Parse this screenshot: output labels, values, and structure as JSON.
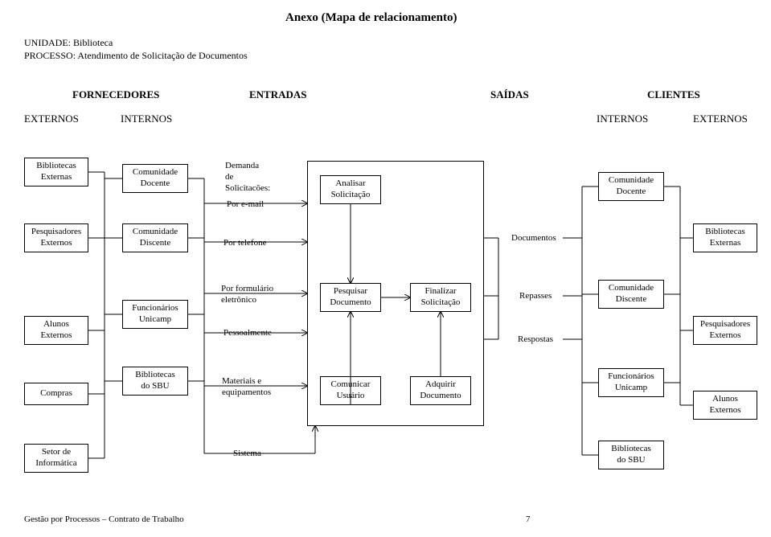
{
  "title": "Anexo (Mapa de relacionamento)",
  "header": {
    "unit_label": "UNIDADE:",
    "unit_value": "Biblioteca",
    "process_label": "PROCESSO:",
    "process_value": "Atendimento de Solicitação de Documentos"
  },
  "column_headers": {
    "fornecedores": "FORNECEDORES",
    "entradas": "ENTRADAS",
    "saidas": "SAÍDAS",
    "clientes": "CLIENTES",
    "externos_l": "EXTERNOS",
    "internos_l": "INTERNOS",
    "internos_r": "INTERNOS",
    "externos_r": "EXTERNOS"
  },
  "left_externos": {
    "bibliotecas": "Bibliotecas\nExternas",
    "pesquisadores": "Pesquisadores\nExternos",
    "alunos": "Alunos\nExternos",
    "compras": "Compras",
    "setor": "Setor de\nInformática"
  },
  "left_internos": {
    "docente": "Comunidade\nDocente",
    "discente": "Comunidade\nDiscente",
    "funcionarios": "Funcionários\nUnicamp",
    "sbu": "Bibliotecas\ndo SBU"
  },
  "entradas": {
    "demanda": "Demanda\nde\nSolicitacões:",
    "email": "Por e-mail",
    "telefone": "Por telefone",
    "formulario": "Por formulário\neletrônico",
    "pessoalmente": "Pessoalmente",
    "materiais": "Materiais e\nequipamentos",
    "sistema": "Sistema"
  },
  "process": {
    "analisar": "Analisar\nSolicitação",
    "pesquisar": "Pesquisar\nDocumento",
    "finalizar": "Finalizar\nSolicitação",
    "comunicar": "Comunicar\nUsuário",
    "adquirir": "Adquirir\nDocumento"
  },
  "saidas": {
    "documentos": "Documentos",
    "repasses": "Repasses",
    "respostas": "Respostas"
  },
  "right_internos": {
    "docente": "Comunidade\nDocente",
    "discente": "Comunidade\nDiscente",
    "funcionarios": "Funcionários\nUnicamp",
    "sbu": "Bibliotecas\ndo SBU"
  },
  "right_externos": {
    "bibliotecas": "Bibliotecas\nExternas",
    "pesquisadores": "Pesquisadores\nExternos",
    "alunos": "Alunos\nExternos"
  },
  "footer": {
    "text": "Gestão por Processos – Contrato de Trabalho",
    "page": "7"
  },
  "style": {
    "background": "#ffffff",
    "border": "#000000",
    "text": "#000000"
  }
}
